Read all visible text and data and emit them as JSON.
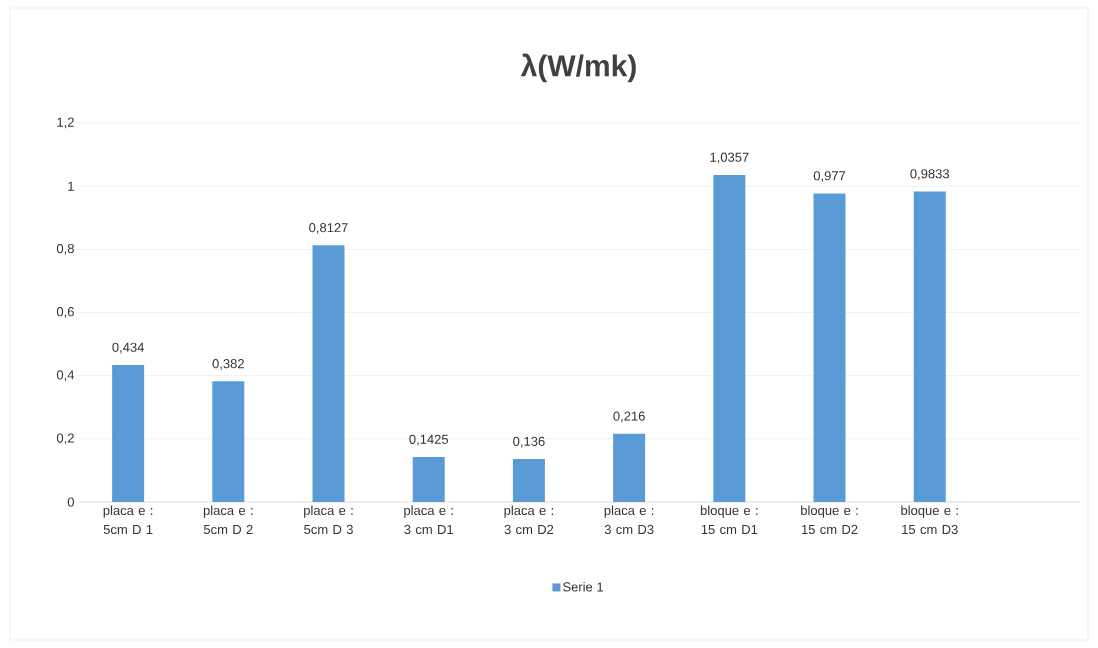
{
  "chart_data": {
    "type": "bar",
    "title": "λ(W/mk)",
    "categories": [
      "placa e : 5cm D 1",
      "placa e : 5cm D 2",
      "placa e : 5cm D 3",
      "placa e : 3 cm D1",
      "placa e : 3 cm D2",
      "placa e : 3 cm D3",
      "bloque e : 15 cm D1",
      "bloque e : 15 cm D2",
      "bloque e : 15 cm D3",
      null
    ],
    "series": [
      {
        "name": "Serie 1",
        "color": "#5b9bd5",
        "values": [
          0.434,
          0.382,
          0.8127,
          0.1425,
          0.136,
          0.216,
          1.0357,
          0.977,
          0.9833,
          null
        ],
        "value_labels": [
          "0,434",
          "0,382",
          "0,8127",
          "0,1425",
          "0,136",
          "0,216",
          "1,0357",
          "0,977",
          "0,9833",
          null
        ]
      }
    ],
    "ylim": [
      0,
      1.2
    ],
    "yticks": [
      {
        "value": 0,
        "label": "0"
      },
      {
        "value": 0.2,
        "label": "0,2"
      },
      {
        "value": 0.4,
        "label": "0,4"
      },
      {
        "value": 0.6,
        "label": "0,6"
      },
      {
        "value": 0.8,
        "label": "0,8"
      },
      {
        "value": 1,
        "label": "1"
      },
      {
        "value": 1.2,
        "label": "1,2"
      }
    ],
    "grid": "y",
    "legend": "bottom"
  }
}
